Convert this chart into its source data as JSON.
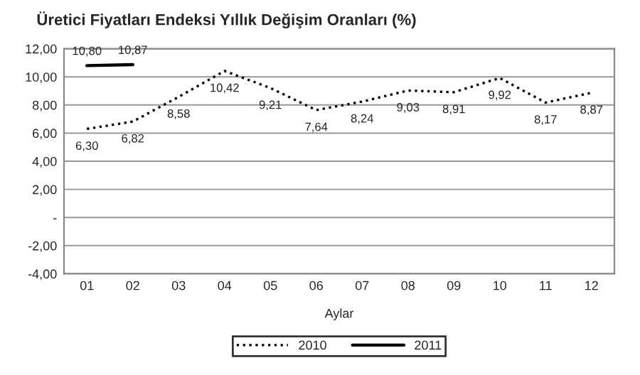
{
  "chart_data": {
    "type": "line",
    "title": "Üretici Fiyatları Endeksi Yıllık Değişim Oranları (%)",
    "xlabel": "Aylar",
    "categories": [
      "01",
      "02",
      "03",
      "04",
      "05",
      "06",
      "07",
      "08",
      "09",
      "10",
      "11",
      "12"
    ],
    "series": [
      {
        "name": "2010",
        "color": "#000000",
        "line_style": "dotted",
        "values": [
          6.3,
          6.82,
          8.58,
          10.42,
          9.21,
          7.64,
          8.24,
          9.03,
          8.91,
          9.92,
          8.17,
          8.87
        ],
        "value_labels": [
          "6,30",
          "6,82",
          "8,58",
          "10,42",
          "9,21",
          "7,64",
          "8,24",
          "9,03",
          "8,91",
          "9,92",
          "8,17",
          "8,87"
        ]
      },
      {
        "name": "2011",
        "color": "#000000",
        "line_style": "solid",
        "values": [
          10.8,
          10.87,
          null,
          null,
          null,
          null,
          null,
          null,
          null,
          null,
          null,
          null
        ],
        "value_labels": [
          "10,80",
          "10,87",
          null,
          null,
          null,
          null,
          null,
          null,
          null,
          null,
          null,
          null
        ]
      }
    ],
    "ylim": [
      -4,
      12
    ],
    "yticks": [
      {
        "value": -4,
        "label": "-4,00"
      },
      {
        "value": -2,
        "label": "-2,00"
      },
      {
        "value": 0,
        "label": "-"
      },
      {
        "value": 2,
        "label": "2,00"
      },
      {
        "value": 4,
        "label": "4,00"
      },
      {
        "value": 6,
        "label": "6,00"
      },
      {
        "value": 8,
        "label": "8,00"
      },
      {
        "value": 10,
        "label": "10,00"
      },
      {
        "value": 12,
        "label": "12,00"
      }
    ],
    "grid": "y",
    "legend": "bottom",
    "marker": "none"
  }
}
